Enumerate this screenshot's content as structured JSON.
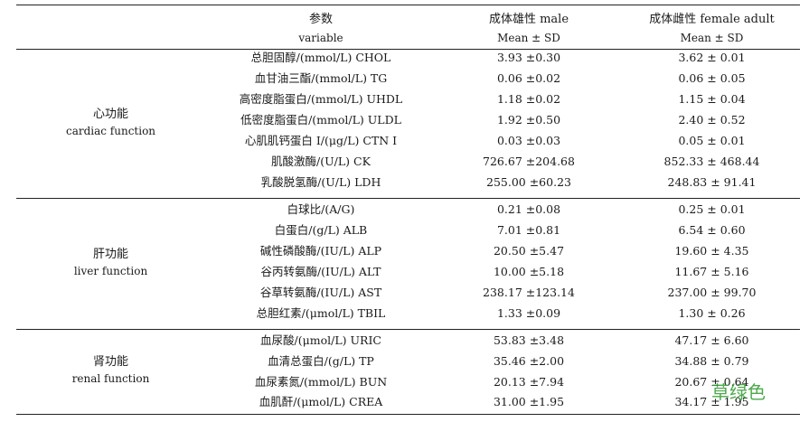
{
  "header": {
    "variable_zh": "参数",
    "variable_en": "variable",
    "male_zh": "成体雄性 male",
    "male_sub": "Mean ± SD",
    "female_zh": "成体雌性 female adult",
    "female_sub": "Mean ± SD"
  },
  "sections": [
    {
      "label_zh": "心功能",
      "label_en": "cardiac function",
      "rows": [
        {
          "variable": "总胆固醇/(mmol/L) CHOL",
          "male": "3.93 ±0.30",
          "female": "3.62 ± 0.01"
        },
        {
          "variable": "血甘油三酯/(mmol/L) TG",
          "male": "0.06 ±0.02",
          "female": "0.06 ± 0.05"
        },
        {
          "variable": "高密度脂蛋白/(mmol/L) UHDL",
          "male": "1.18 ±0.02",
          "female": "1.15 ± 0.04"
        },
        {
          "variable": "低密度脂蛋白/(mmol/L) ULDL",
          "male": "1.92 ±0.50",
          "female": "2.40 ± 0.52"
        },
        {
          "variable": "心肌肌钙蛋白 I/(μg/L) CTN I",
          "male": "0.03 ±0.03",
          "female": "0.05 ± 0.01"
        },
        {
          "variable": "肌酸激酶/(U/L) CK",
          "male": "726.67 ±204.68",
          "female": "852.33 ± 468.44"
        },
        {
          "variable": "乳酸脱氢酶/(U/L) LDH",
          "male": "255.00 ±60.23",
          "female": "248.83 ± 91.41"
        }
      ]
    },
    {
      "label_zh": "肝功能",
      "label_en": "liver function",
      "rows": [
        {
          "variable": "白球比/(A/G)",
          "male": "0.21 ±0.08",
          "female": "0.25 ± 0.01"
        },
        {
          "variable": "白蛋白/(g/L) ALB",
          "male": "7.01 ±0.81",
          "female": "6.54 ± 0.60"
        },
        {
          "variable": "碱性磷酸酶/(IU/L) ALP",
          "male": "20.50 ±5.47",
          "female": "19.60 ± 4.35"
        },
        {
          "variable": "谷丙转氨酶/(IU/L) ALT",
          "male": "10.00 ±5.18",
          "female": "11.67 ± 5.16"
        },
        {
          "variable": "谷草转氨酶/(IU/L) AST",
          "male": "238.17 ±123.14",
          "female": "237.00 ± 99.70"
        },
        {
          "variable": "总胆红素/(μmol/L) TBIL",
          "male": "1.33 ±0.09",
          "female": "1.30 ± 0.26"
        }
      ]
    },
    {
      "label_zh": "肾功能",
      "label_en": "renal function",
      "rows": [
        {
          "variable": "血尿酸/(μmol/L) URIC",
          "male": "53.83 ±3.48",
          "female": "47.17 ± 6.60"
        },
        {
          "variable": "血清总蛋白/(g/L) TP",
          "male": "35.46 ±2.00",
          "female": "34.88 ± 0.79"
        },
        {
          "variable": "血尿素氮/(mmol/L) BUN",
          "male": "20.13 ±7.94",
          "female": "20.67 ± 0.64"
        },
        {
          "variable": "血肌酐/(μmol/L) CREA",
          "male": "31.00 ±1.95",
          "female": "34.17 ± 1.95"
        }
      ]
    }
  ],
  "watermark": "草绿色"
}
